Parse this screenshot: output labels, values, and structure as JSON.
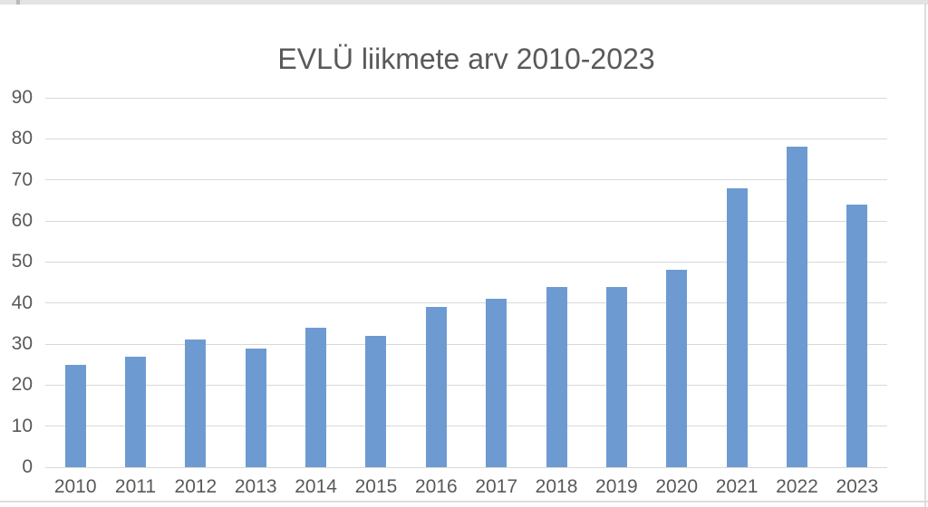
{
  "frame": {
    "top_band_color": "#e3e3e3",
    "border_color": "#dcdcdc"
  },
  "chart_data": {
    "type": "bar",
    "title": "EVLÜ liikmete arv 2010-2023",
    "xlabel": "",
    "ylabel": "",
    "categories": [
      "2010",
      "2011",
      "2012",
      "2013",
      "2014",
      "2015",
      "2016",
      "2017",
      "2018",
      "2019",
      "2020",
      "2021",
      "2022",
      "2023"
    ],
    "values": [
      25,
      27,
      31,
      29,
      34,
      32,
      39,
      41,
      44,
      44,
      48,
      68,
      78,
      64
    ],
    "ylim": [
      0,
      90
    ],
    "yticks": [
      0,
      10,
      20,
      30,
      40,
      50,
      60,
      70,
      80,
      90
    ],
    "grid": true,
    "legend": "none",
    "bar_color": "#6d9bd1",
    "gridline_color": "#d9d9d9",
    "text_color": "#595959",
    "background_color": "#ffffff"
  }
}
